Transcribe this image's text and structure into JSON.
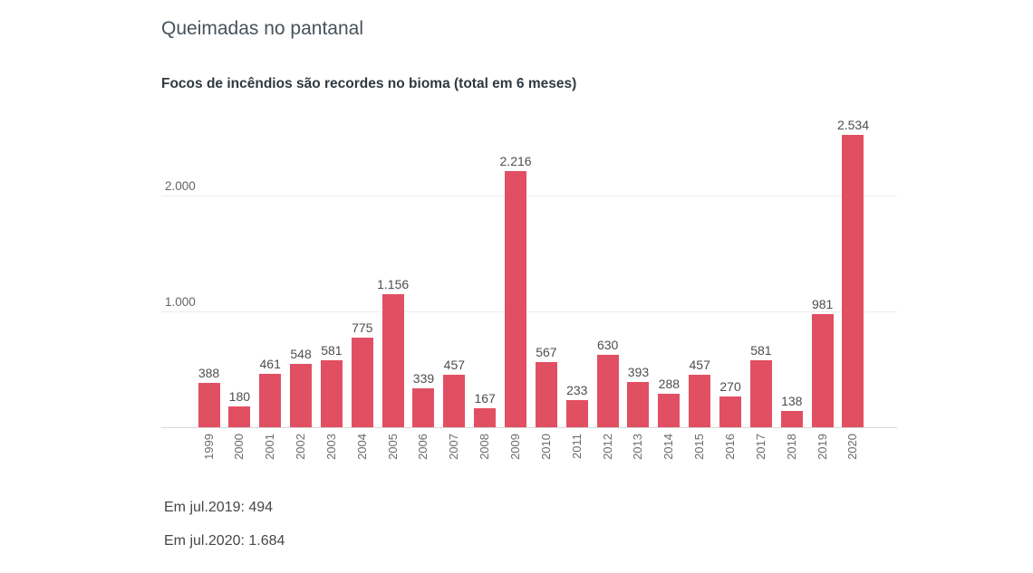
{
  "header": {
    "title": "Queimadas no pantanal",
    "subtitle": "Focos de incêndios são recordes no bioma (total em 6 meses)"
  },
  "chart_data": {
    "type": "bar",
    "title": "Focos de incêndios são recordes no bioma (total em 6 meses)",
    "categories": [
      "1999",
      "2000",
      "2001",
      "2002",
      "2003",
      "2004",
      "2005",
      "2006",
      "2007",
      "2008",
      "2009",
      "2010",
      "2011",
      "2012",
      "2013",
      "2014",
      "2015",
      "2016",
      "2017",
      "2018",
      "2019",
      "2020"
    ],
    "values": [
      388,
      180,
      461,
      548,
      581,
      775,
      1156,
      339,
      457,
      167,
      2216,
      567,
      233,
      630,
      393,
      288,
      457,
      270,
      581,
      138,
      981,
      2534
    ],
    "value_labels": [
      "388",
      "180",
      "461",
      "548",
      "581",
      "775",
      "1.156",
      "339",
      "457",
      "167",
      "2.216",
      "567",
      "233",
      "630",
      "393",
      "288",
      "457",
      "270",
      "581",
      "138",
      "981",
      "2.534"
    ],
    "xlabel": "",
    "ylabel": "",
    "ylim": [
      0,
      2600
    ],
    "yticks": [
      {
        "value": 1000,
        "label": "1.000"
      },
      {
        "value": 2000,
        "label": "2.000"
      }
    ],
    "grid": true,
    "legend": false,
    "bar_color": "#e15062"
  },
  "annotations": {
    "jul2019": "Em jul.2019: 494",
    "jul2020": "Em jul.2020: 1.684"
  },
  "colors": {
    "bar": "#e15062",
    "title": "#47525a",
    "subtitle": "#2f3940",
    "value_label": "#4e4e4e",
    "axis_line": "#d9d9d9",
    "gridline": "#ececec",
    "background": "#ffffff"
  }
}
